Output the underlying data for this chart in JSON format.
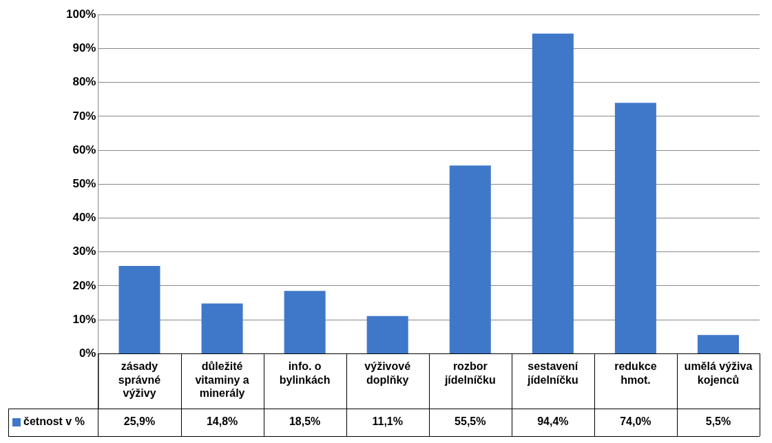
{
  "chart_data": {
    "type": "bar",
    "categories": [
      "zásady správné výživy",
      "důležité vitaminy a minerály",
      "info. o bylinkách",
      "výživové doplňky",
      "rozbor jídelníčku",
      "sestavení jídelníčku",
      "redukce hmot.",
      "umělá výživa kojenců"
    ],
    "series": [
      {
        "name": "četnost v %",
        "color": "#3f78c8",
        "values": [
          25.9,
          14.8,
          18.5,
          11.1,
          55.5,
          94.4,
          74.0,
          5.5
        ],
        "value_labels": [
          "25,9%",
          "14,8%",
          "18,5%",
          "11,1%",
          "55,5%",
          "94,4%",
          "74,0%",
          "5,5%"
        ]
      }
    ],
    "ylim": [
      0,
      100
    ],
    "yticks": [
      {
        "value": 0,
        "label": "0%"
      },
      {
        "value": 10,
        "label": "10%"
      },
      {
        "value": 20,
        "label": "20%"
      },
      {
        "value": 30,
        "label": "30%"
      },
      {
        "value": 40,
        "label": "40%"
      },
      {
        "value": 50,
        "label": "50%"
      },
      {
        "value": 60,
        "label": "60%"
      },
      {
        "value": 70,
        "label": "70%"
      },
      {
        "value": 80,
        "label": "80%"
      },
      {
        "value": 90,
        "label": "90%"
      },
      {
        "value": 100,
        "label": "100%"
      }
    ],
    "grid": "y",
    "legend": "bottom left"
  }
}
